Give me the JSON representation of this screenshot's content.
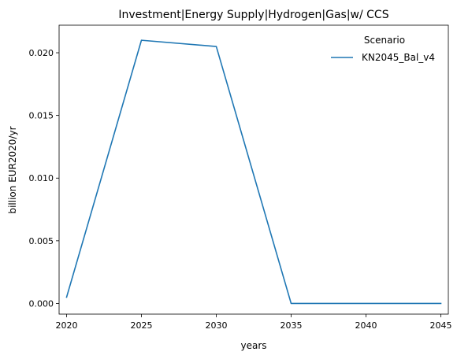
{
  "chart_data": {
    "type": "line",
    "title": "Investment|Energy Supply|Hydrogen|Gas|w/ CCS",
    "xlabel": "years",
    "ylabel": "billion EUR2020/yr",
    "x": [
      2020,
      2025,
      2030,
      2035,
      2040,
      2045
    ],
    "xticks": [
      "2020",
      "2025",
      "2030",
      "2035",
      "2040",
      "2045"
    ],
    "yticks": [
      "0.000",
      "0.005",
      "0.010",
      "0.015",
      "0.020"
    ],
    "xlim": [
      2019.5,
      2045.5
    ],
    "ylim": [
      -0.00085,
      0.0222
    ],
    "grid": false,
    "legend": {
      "title": "Scenario",
      "placement": "top-right"
    },
    "series": [
      {
        "name": "KN2045_Bal_v4",
        "color": "#1f77b4",
        "values": [
          0.0005,
          0.021,
          0.0205,
          0.0,
          0.0,
          0.0
        ]
      }
    ]
  }
}
